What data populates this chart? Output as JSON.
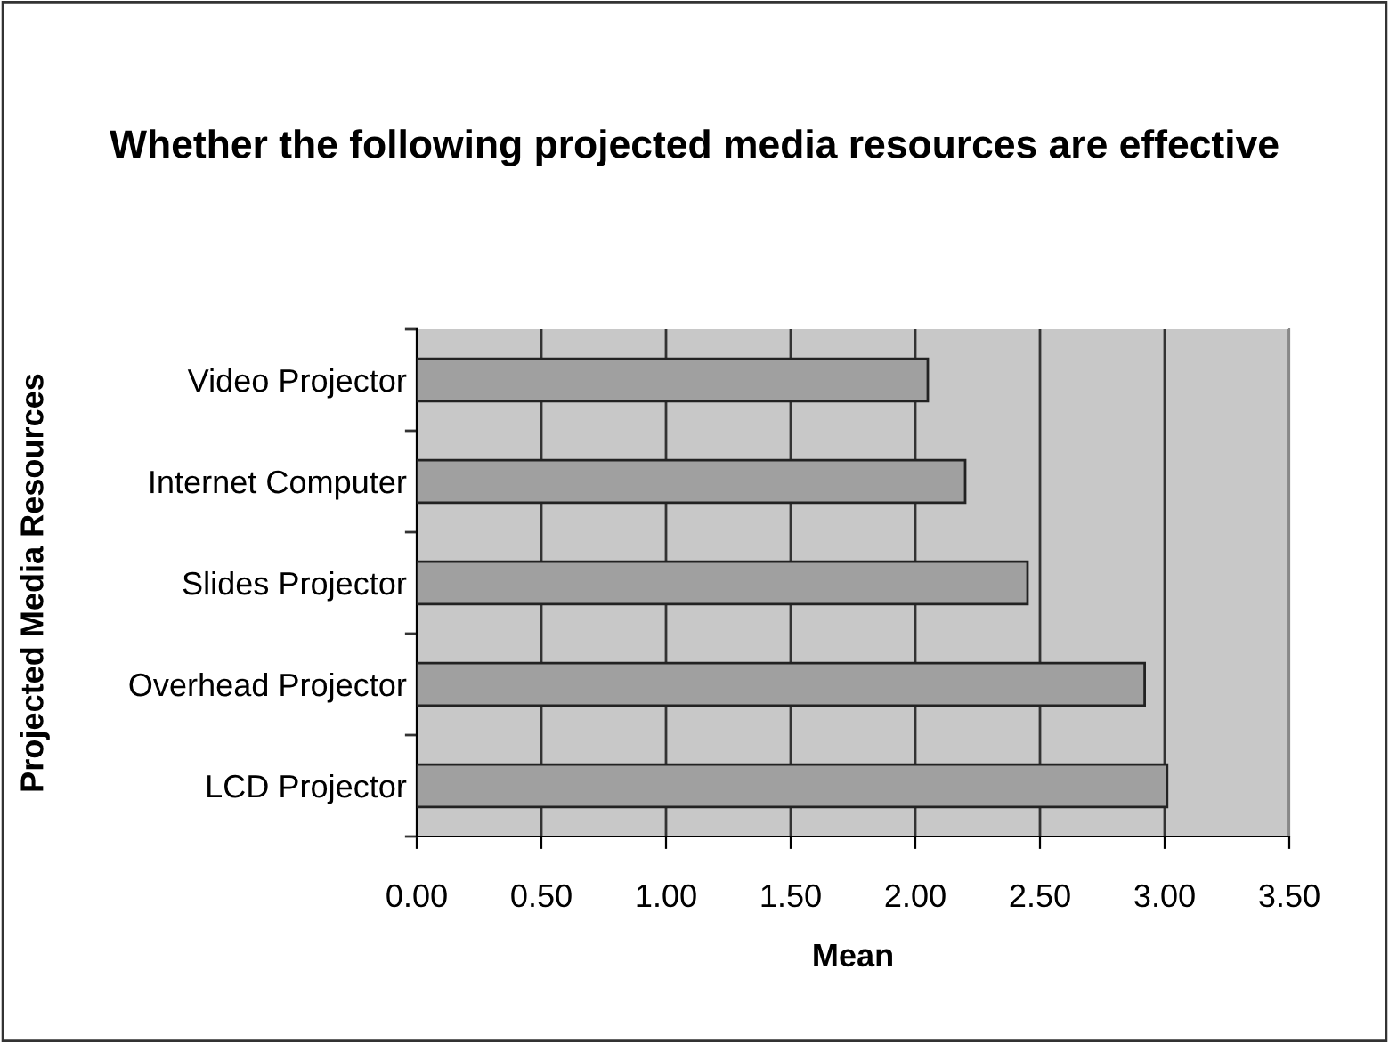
{
  "chart_data": {
    "type": "bar",
    "orientation": "horizontal",
    "title": "Whether the following projected media resources are effective",
    "xlabel": "Mean",
    "ylabel": "Projected Media Resources",
    "categories": [
      "Video Projector",
      "Internet Computer",
      "Slides Projector",
      "Overhead Projector",
      "LCD Projector"
    ],
    "values": [
      2.05,
      2.2,
      2.45,
      2.92,
      3.01
    ],
    "color": "#a0a0a0",
    "xlim": [
      0,
      3.5
    ],
    "xticks": [
      {
        "value": 0,
        "label": "0.00"
      },
      {
        "value": 0.5,
        "label": "0.50"
      },
      {
        "value": 1,
        "label": "1.00"
      },
      {
        "value": 1.5,
        "label": "1.50"
      },
      {
        "value": 2,
        "label": "2.00"
      },
      {
        "value": 2.5,
        "label": "2.50"
      },
      {
        "value": 3,
        "label": "3.00"
      },
      {
        "value": 3.5,
        "label": "3.50"
      }
    ],
    "grid": "x",
    "legend": false
  }
}
